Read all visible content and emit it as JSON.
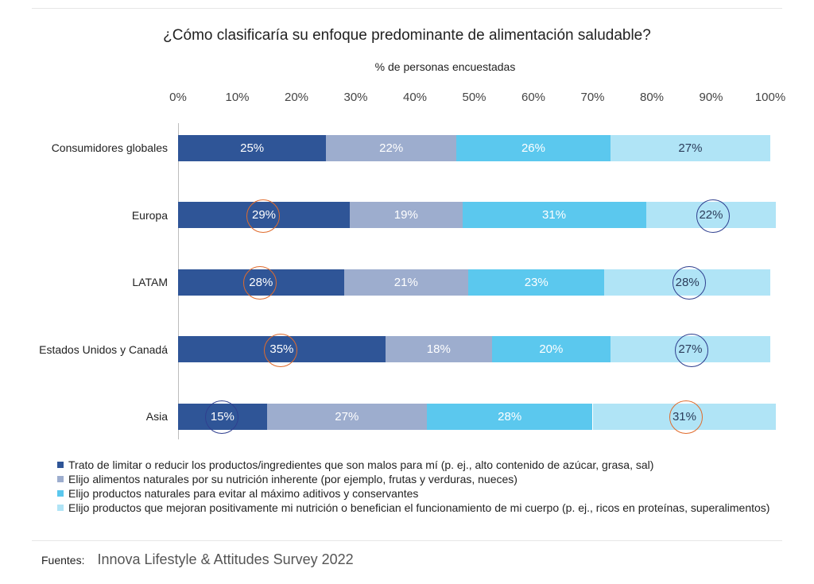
{
  "colors": {
    "series": [
      "#2f5597",
      "#9dadce",
      "#5bc8ee",
      "#b0e4f6"
    ],
    "text_on_bar": [
      "#ffffff",
      "#ffffff",
      "#ffffff",
      "#2b3c5a"
    ],
    "circle_orange": "#e06b2c",
    "circle_blue": "#2f3f8f"
  },
  "chart_data": {
    "type": "bar",
    "orientation": "horizontal",
    "stacked": true,
    "title": "¿Cómo clasificaría su enfoque predominante de alimentación saludable?",
    "xlabel": "% de personas encuestadas",
    "ylabel": "",
    "xlim": [
      0,
      100
    ],
    "ticks": [
      "0%",
      "10%",
      "20%",
      "30%",
      "40%",
      "50%",
      "60%",
      "70%",
      "80%",
      "90%",
      "100%"
    ],
    "categories": [
      "Consumidores globales",
      "Europa",
      "LATAM",
      "Estados Unidos y Canadá",
      "Asia"
    ],
    "series": [
      {
        "name": "Trato de limitar o reducir los productos/ingredientes que son malos para mí (p. ej., alto contenido de azúcar, grasa, sal)",
        "values": [
          25,
          29,
          28,
          35,
          15
        ],
        "labels": [
          "25%",
          "29%",
          "28%",
          "35%",
          "15%"
        ]
      },
      {
        "name": "Elijo alimentos naturales por su nutrición inherente (por ejemplo, frutas y verduras, nueces)",
        "values": [
          22,
          19,
          21,
          18,
          27
        ],
        "labels": [
          "22%",
          "19%",
          "21%",
          "18%",
          "27%"
        ]
      },
      {
        "name": "Elijo productos naturales para evitar al máximo aditivos y conservantes",
        "values": [
          26,
          31,
          23,
          20,
          28
        ],
        "labels": [
          "26%",
          "31%",
          "23%",
          "20%",
          "28%"
        ]
      },
      {
        "name": "Elijo productos que mejoran positivamente mi nutrición o benefician el funcionamiento de mi cuerpo (p. ej., ricos en proteínas, superalimentos)",
        "values": [
          27,
          22,
          28,
          27,
          31
        ],
        "labels": [
          "27%",
          "22%",
          "28%",
          "27%",
          "31%"
        ]
      }
    ],
    "legend_position": "bottom",
    "annotations": [
      {
        "type": "circle",
        "color": "orange",
        "category": "Europa",
        "series": 0
      },
      {
        "type": "circle",
        "color": "blue",
        "category": "Europa",
        "series": 3
      },
      {
        "type": "circle",
        "color": "orange",
        "category": "LATAM",
        "series": 0
      },
      {
        "type": "circle",
        "color": "blue",
        "category": "LATAM",
        "series": 3
      },
      {
        "type": "circle",
        "color": "orange",
        "category": "Estados Unidos y Canadá",
        "series": 0
      },
      {
        "type": "circle",
        "color": "blue",
        "category": "Estados Unidos y Canadá",
        "series": 3
      },
      {
        "type": "circle",
        "color": "blue",
        "category": "Asia",
        "series": 0
      },
      {
        "type": "circle",
        "color": "orange",
        "category": "Asia",
        "series": 3
      }
    ]
  },
  "source": {
    "label": "Fuentes:",
    "text": "Innova Lifestyle & Attitudes Survey 2022"
  }
}
